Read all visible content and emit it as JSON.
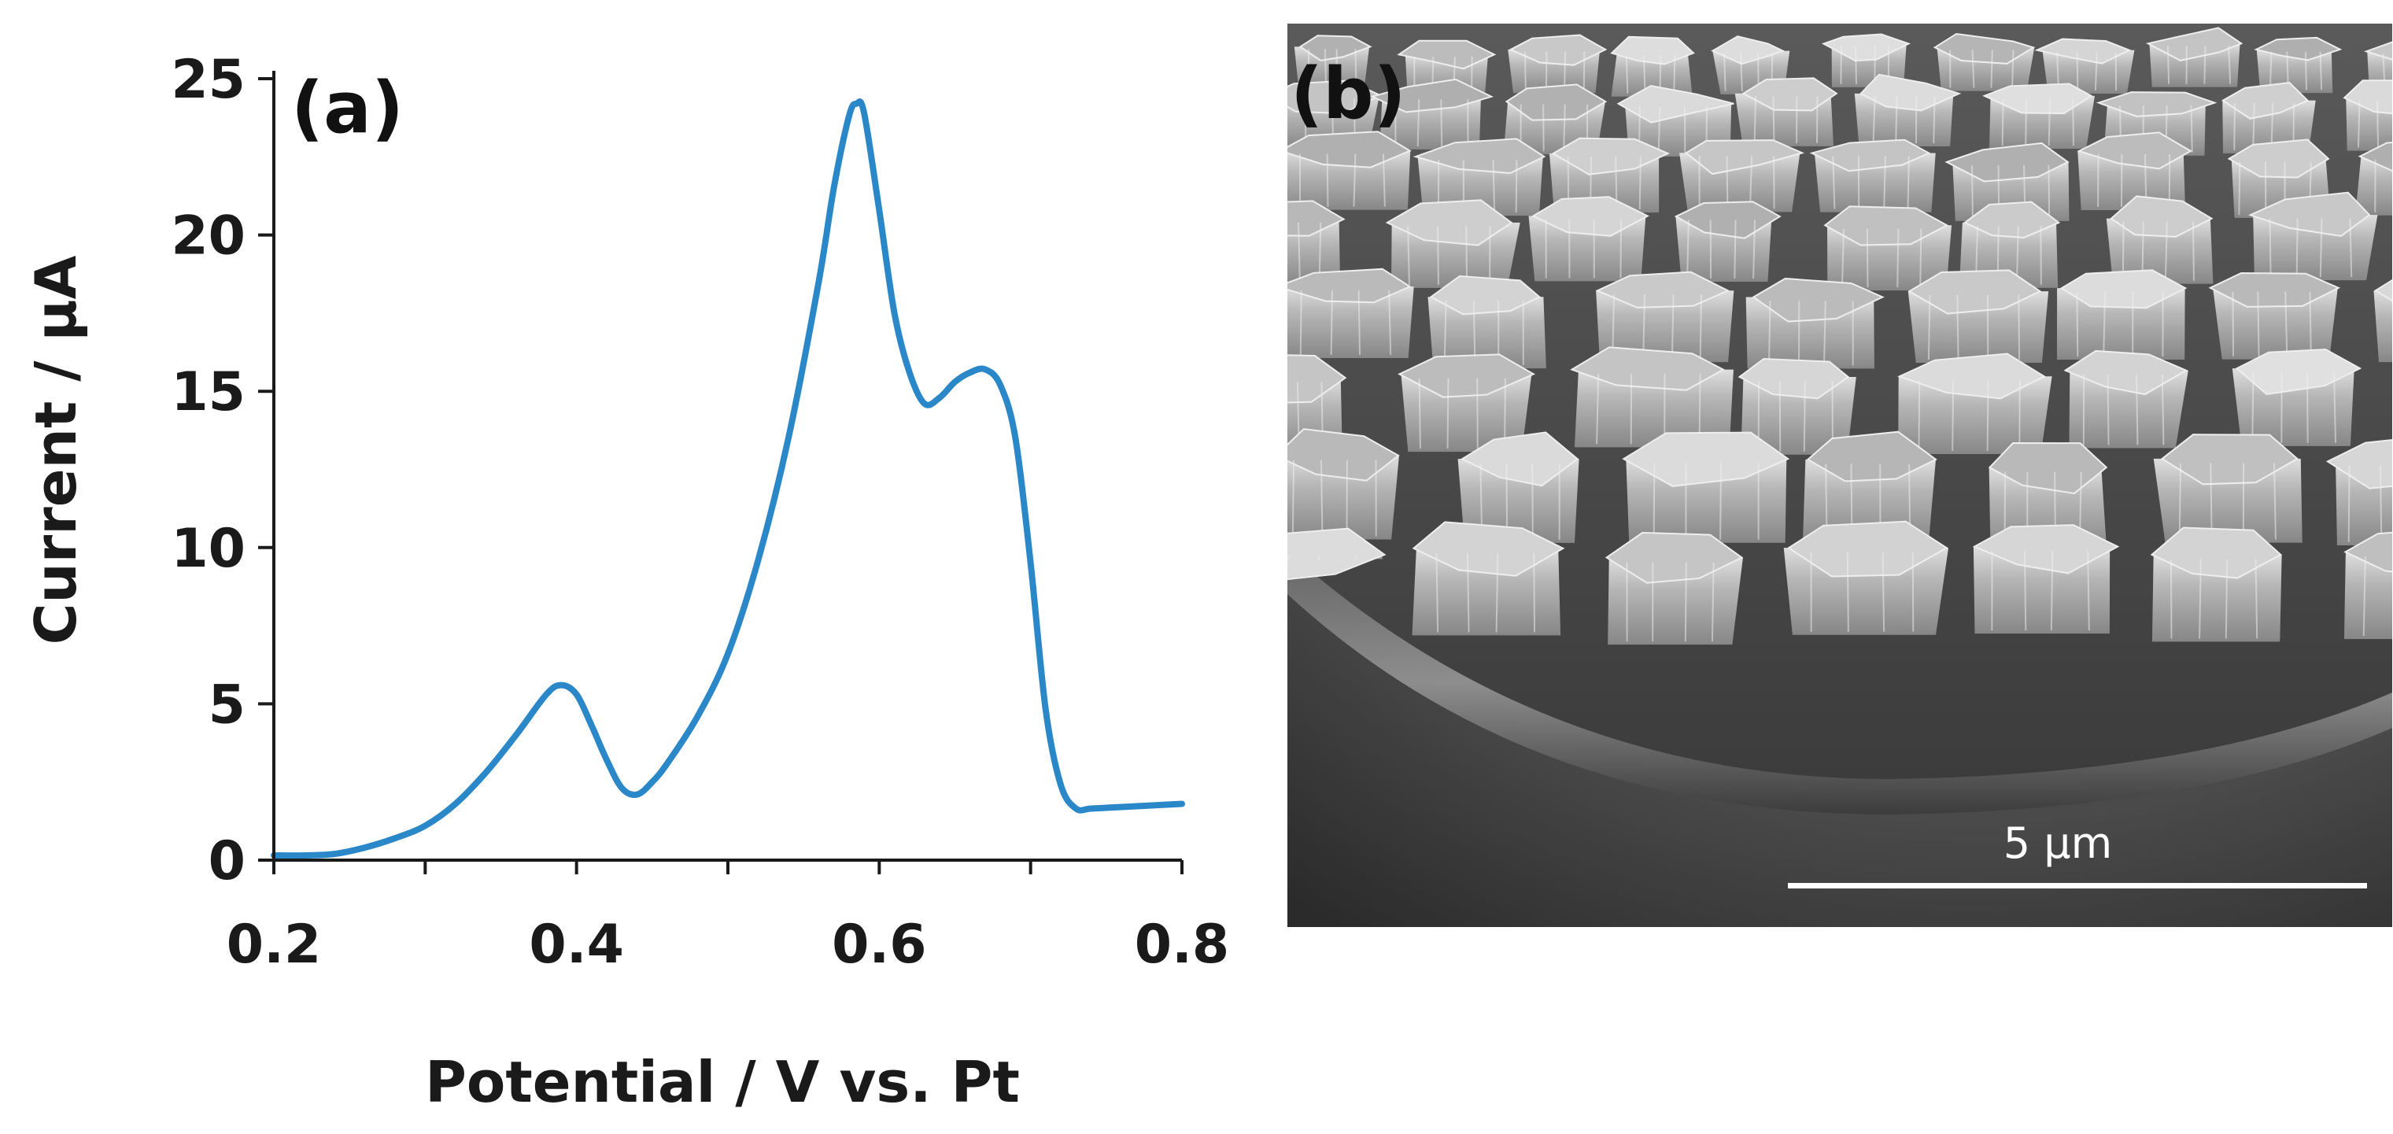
{
  "chart_data": {
    "type": "line",
    "title": "",
    "panel_label": "(a)",
    "xlabel": "Potential  / V vs. Pt",
    "ylabel": "Current / µA",
    "xlim": [
      0.2,
      0.8
    ],
    "ylim": [
      0,
      25
    ],
    "xticks": [
      "0.2",
      "0.4",
      "0.6",
      "0.8"
    ],
    "yticks": [
      "0",
      "5",
      "10",
      "15",
      "20",
      "25"
    ],
    "grid": false,
    "series": [
      {
        "name": "current",
        "color": "#2b88c8",
        "x": [
          0.2,
          0.22,
          0.24,
          0.26,
          0.28,
          0.3,
          0.32,
          0.34,
          0.36,
          0.38,
          0.39,
          0.4,
          0.41,
          0.42,
          0.43,
          0.44,
          0.45,
          0.46,
          0.48,
          0.5,
          0.52,
          0.54,
          0.56,
          0.57,
          0.58,
          0.585,
          0.59,
          0.6,
          0.61,
          0.62,
          0.63,
          0.64,
          0.65,
          0.66,
          0.67,
          0.68,
          0.69,
          0.7,
          0.71,
          0.72,
          0.73,
          0.74,
          0.76,
          0.78,
          0.8
        ],
        "y": [
          0.15,
          0.15,
          0.2,
          0.4,
          0.7,
          1.1,
          1.8,
          2.8,
          4.0,
          5.3,
          5.6,
          5.3,
          4.3,
          3.2,
          2.3,
          2.1,
          2.5,
          3.1,
          4.6,
          6.6,
          9.6,
          13.5,
          18.5,
          21.5,
          23.8,
          24.2,
          23.9,
          20.8,
          17.5,
          15.6,
          14.6,
          14.8,
          15.3,
          15.6,
          15.7,
          15.2,
          13.5,
          9.5,
          4.8,
          2.4,
          1.65,
          1.65,
          1.7,
          1.75,
          1.8
        ]
      }
    ]
  },
  "sem_panel": {
    "panel_label": "(b)",
    "scale_bar_label": "5 µm"
  }
}
